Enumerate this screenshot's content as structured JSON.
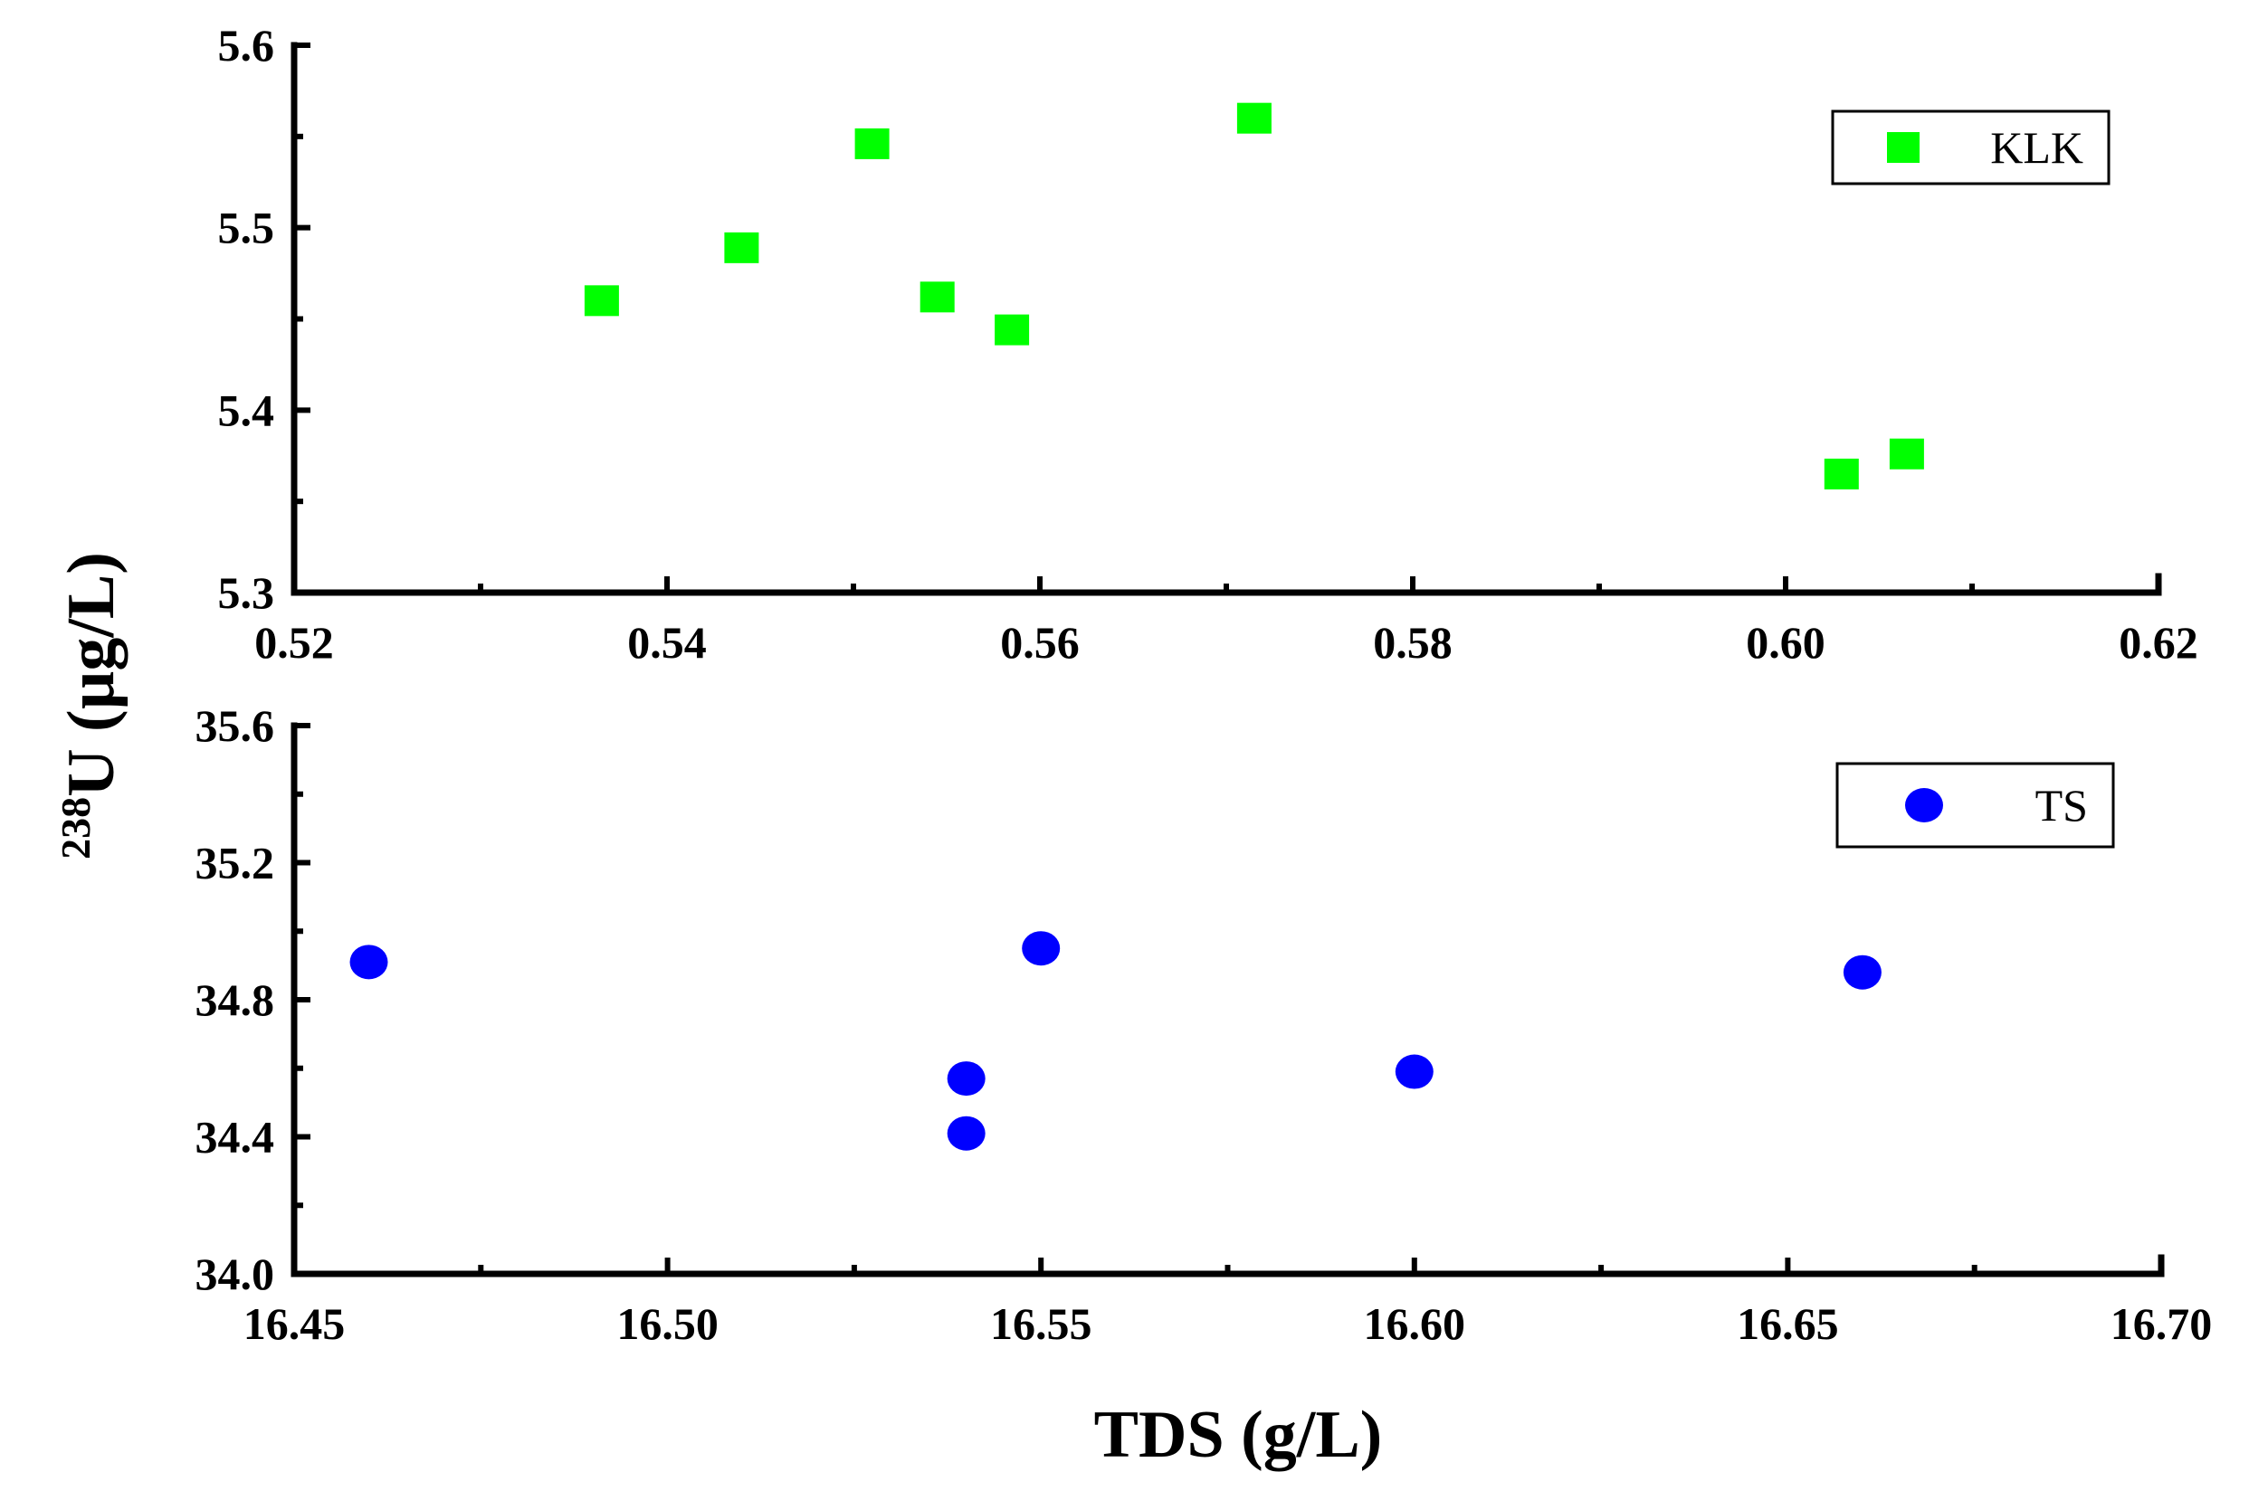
{
  "chart_data": [
    {
      "type": "scatter",
      "title": "",
      "xlabel": "",
      "ylabel": "238U (µg/L)",
      "xlim": [
        0.52,
        0.62
      ],
      "ylim": [
        5.3,
        5.6
      ],
      "x_ticks": [
        0.52,
        0.54,
        0.56,
        0.58,
        0.6,
        0.62
      ],
      "x_tick_labels": [
        "0.52",
        "0.54",
        "0.56",
        "0.58",
        "0.60",
        "0.62"
      ],
      "y_ticks": [
        5.3,
        5.4,
        5.5,
        5.6
      ],
      "y_tick_labels": [
        "5.3",
        "5.4",
        "5.5",
        "5.6"
      ],
      "legend_position": "top-right",
      "grid": false,
      "series": [
        {
          "name": "KLK",
          "marker": "square",
          "color": "#00ff00",
          "x": [
            0.5365,
            0.544,
            0.551,
            0.5545,
            0.5585,
            0.5715,
            0.603,
            0.6065
          ],
          "y": [
            5.46,
            5.489,
            5.546,
            5.462,
            5.444,
            5.56,
            5.365,
            5.376
          ]
        }
      ]
    },
    {
      "type": "scatter",
      "title": "",
      "xlabel": "TDS (g/L)",
      "ylabel": "238U (µg/L)",
      "xlim": [
        16.45,
        16.7
      ],
      "ylim": [
        34.0,
        35.6
      ],
      "x_ticks": [
        16.45,
        16.5,
        16.55,
        16.6,
        16.65,
        16.7
      ],
      "x_tick_labels": [
        "16.45",
        "16.50",
        "16.55",
        "16.60",
        "16.65",
        "16.70"
      ],
      "y_ticks": [
        34.0,
        34.4,
        34.8,
        35.2,
        35.6
      ],
      "y_tick_labels": [
        "34.0",
        "34.4",
        "34.8",
        "35.2",
        "35.6"
      ],
      "legend_position": "top-right",
      "grid": false,
      "series": [
        {
          "name": "TS",
          "marker": "circle",
          "color": "#0000ff",
          "x": [
            16.46,
            16.54,
            16.54,
            16.55,
            16.6,
            16.66
          ],
          "y": [
            34.91,
            34.57,
            34.41,
            34.95,
            34.59,
            34.88
          ]
        }
      ]
    }
  ],
  "labels": {
    "ylabel_superscript": "238",
    "ylabel_main": "U (µg/L)",
    "xlabel": "TDS (g/L)"
  }
}
